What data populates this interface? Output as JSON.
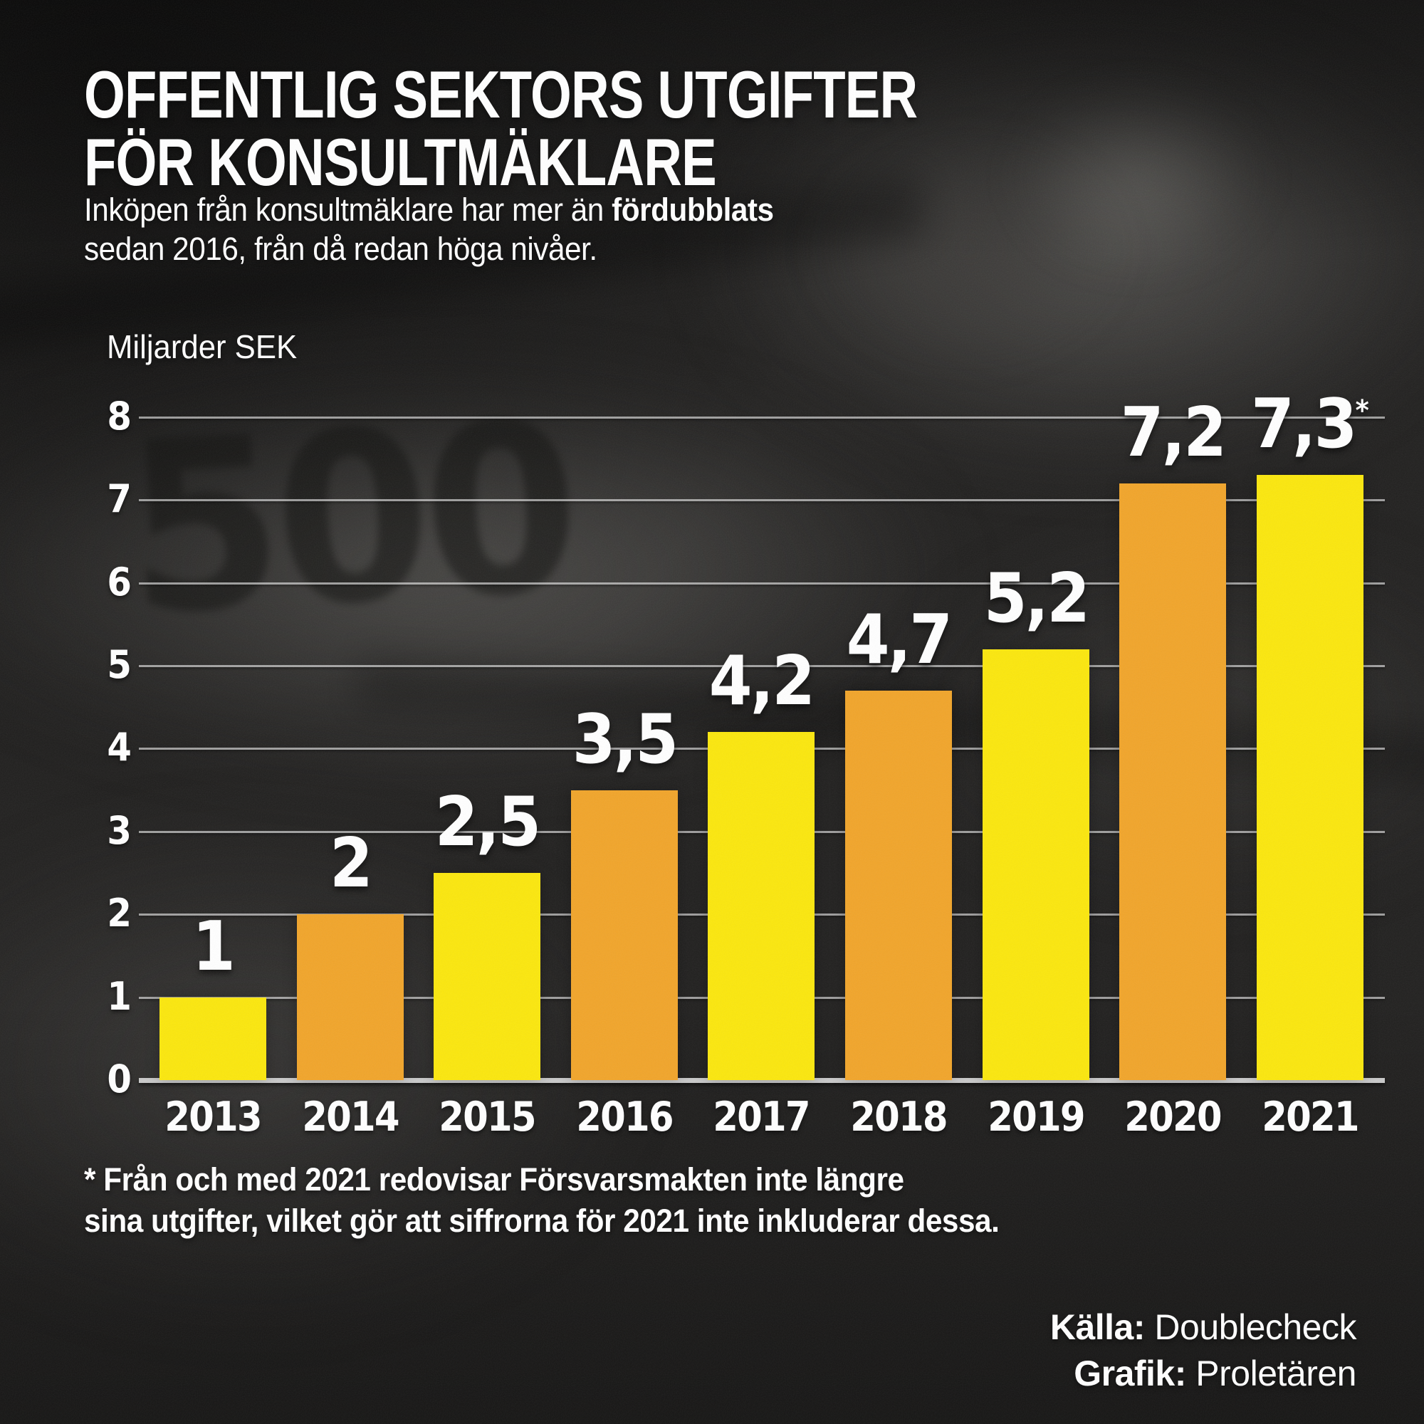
{
  "infographic": {
    "title_line1": "OFFENTLIG SEKTORS UTGIFTER",
    "title_line2": "FÖR KONSULTMÄKLARE",
    "subtitle_pre": "Inköpen från konsultmäklare har mer än ",
    "subtitle_bold": "fördubblats",
    "subtitle_line2": "sedan 2016, från då redan höga nivåer.",
    "unit_label": "Miljarder SEK",
    "footnote_line1": "* Från och med 2021 redovisar Försvarsmakten inte längre",
    "footnote_line2": "sina utgifter, vilket gör att siffrorna för 2021 inte inkluderar dessa.",
    "source_label": "Källa:",
    "source_value": " Doublecheck",
    "credit_label": "Grafik:",
    "credit_value": " Proletären",
    "background_watermark": "500"
  },
  "colors": {
    "yellow": "#fbe70e",
    "orange": "#f1a52b",
    "text": "#ffffff",
    "gridline": "#ebebeb",
    "background": "#222120"
  },
  "chart_data": {
    "type": "bar",
    "title": "Offentlig sektors utgifter för konsultmäklare",
    "xlabel": "",
    "ylabel": "Miljarder SEK",
    "categories": [
      "2013",
      "2014",
      "2015",
      "2016",
      "2017",
      "2018",
      "2019",
      "2020",
      "2021"
    ],
    "values": [
      1,
      2,
      2.5,
      3.5,
      4.2,
      4.7,
      5.2,
      7.2,
      7.3
    ],
    "value_labels": [
      "1",
      "2",
      "2,5",
      "3,5",
      "4,2",
      "4,7",
      "5,2",
      "7,2",
      "7,3"
    ],
    "value_label_suffixes": [
      "",
      "",
      "",
      "",
      "",
      "",
      "",
      "",
      "*"
    ],
    "ylim": [
      0,
      8
    ],
    "yticks": [
      0,
      1,
      2,
      3,
      4,
      5,
      6,
      7,
      8
    ],
    "grid": true,
    "legend": "none",
    "bar_color_pattern": [
      "#fbe70e",
      "#f1a52b"
    ]
  }
}
